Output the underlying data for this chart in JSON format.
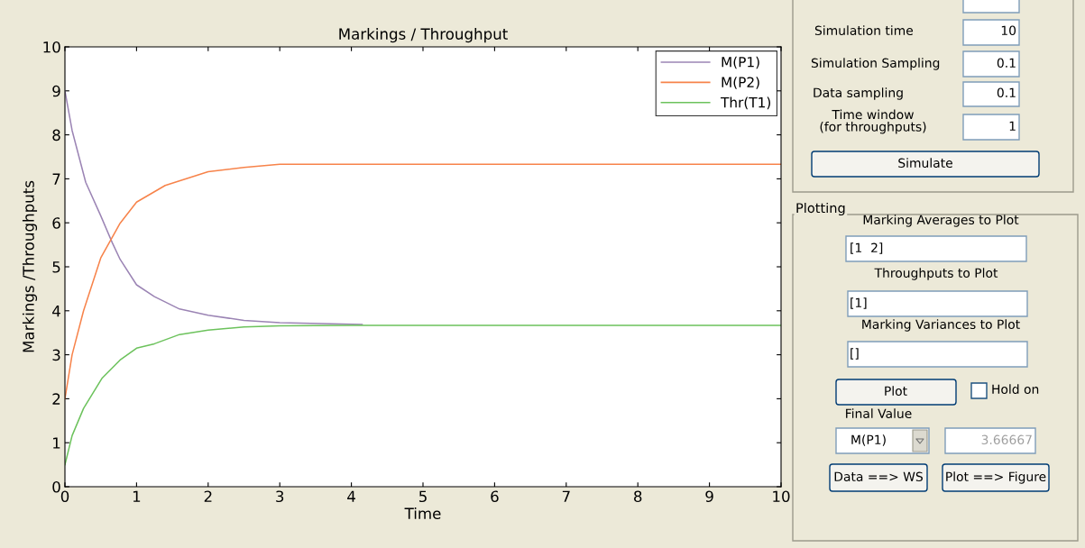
{
  "chart_data": [
    {
      "type": "line",
      "title": "Markings / Throughput",
      "xlabel": "Time",
      "ylabel": "Markings /Throughputs",
      "xlim": [
        0,
        10
      ],
      "ylim": [
        0,
        10
      ],
      "xticks": [
        0,
        1,
        2,
        3,
        4,
        5,
        6,
        7,
        8,
        9,
        10
      ],
      "yticks": [
        0,
        1,
        2,
        3,
        4,
        5,
        6,
        7,
        8,
        9,
        10
      ],
      "grid": false,
      "legend": "top right",
      "marker": "none",
      "line_style": "solid",
      "series": [
        {
          "name": "M(P1)",
          "color": "#9b84b4",
          "x": [
            0,
            0.1,
            0.29,
            0.5,
            0.66,
            0.77,
            1,
            1.25,
            1.6,
            2,
            2.5,
            3,
            4.15
          ],
          "values": [
            9,
            8.1,
            6.92,
            6.16,
            5.55,
            5.17,
            4.59,
            4.32,
            4.04,
            3.9,
            3.78,
            3.73,
            3.69
          ]
        },
        {
          "name": "M(P2)",
          "color": "#f7834a",
          "x": [
            0,
            0.1,
            0.26,
            0.5,
            0.77,
            1,
            1.4,
            2,
            2.5,
            3,
            4,
            10
          ],
          "values": [
            2,
            3.0,
            4.0,
            5.2,
            5.99,
            6.47,
            6.85,
            7.16,
            7.26,
            7.33,
            7.33,
            7.33
          ]
        },
        {
          "name": "Thr(T1)",
          "color": "#6cc25c",
          "x": [
            0,
            0.1,
            0.26,
            0.52,
            0.77,
            1,
            1.25,
            1.6,
            2,
            2.5,
            3,
            4,
            10
          ],
          "values": [
            0.5,
            1.16,
            1.78,
            2.47,
            2.88,
            3.15,
            3.25,
            3.46,
            3.56,
            3.63,
            3.66,
            3.67,
            3.67
          ]
        }
      ]
    },
    {
      "type": "other",
      "title": "Plotting",
      "annotations": [
        "Simulation time",
        "10",
        "Simulation Sampling",
        "0.1",
        "Data sampling",
        "0.1",
        "Time window\n(for throughputs)",
        "1",
        "Simulate",
        "Marking Averages to Plot",
        "[1  2]",
        "Throughputs to Plot",
        "[1]",
        "Marking Variances to Plot",
        "[]",
        "Plot",
        "Hold on",
        "Final Value",
        "M(P1)",
        "3.66667",
        "Data ==> WS",
        "Plot ==> Figure"
      ]
    }
  ]
}
